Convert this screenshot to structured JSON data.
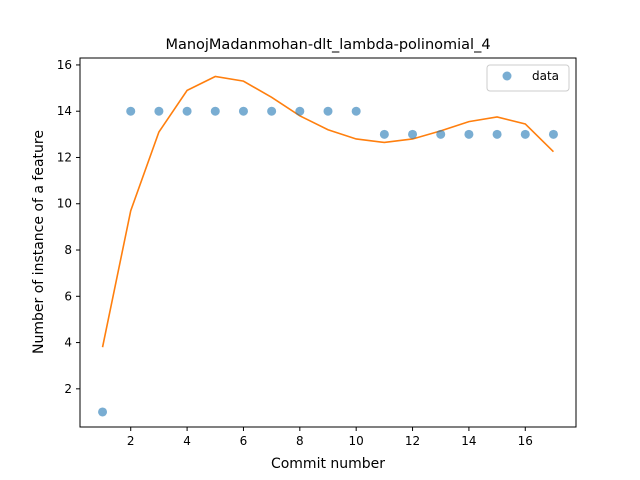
{
  "chart_data": {
    "type": "scatter",
    "title": "ManojMadanmohan-dlt_lambda-polinomial_4",
    "xlabel": "Commit number",
    "ylabel": "Number of instance of a feature",
    "xlim": [
      0.2,
      17.8
    ],
    "ylim": [
      0.35,
      16.3
    ],
    "xticks": [
      2,
      4,
      6,
      8,
      10,
      12,
      14,
      16
    ],
    "yticks": [
      2,
      4,
      6,
      8,
      10,
      12,
      14,
      16
    ],
    "grid": false,
    "legend_position": "top-right",
    "series": [
      {
        "name": "data",
        "kind": "scatter",
        "color": "#1f77b4",
        "x": [
          1,
          2,
          3,
          4,
          5,
          6,
          7,
          8,
          9,
          10,
          11,
          12,
          13,
          14,
          15,
          16,
          17
        ],
        "y": [
          1,
          14,
          14,
          14,
          14,
          14,
          14,
          14,
          14,
          14,
          13,
          13,
          13,
          13,
          13,
          13,
          13
        ]
      },
      {
        "kind": "line",
        "color": "#ff7f0e",
        "x": [
          1,
          2,
          3,
          4,
          5,
          6,
          7,
          8,
          9,
          10,
          11,
          12,
          13,
          14,
          15,
          16,
          17
        ],
        "y": [
          3.8,
          9.7,
          13.1,
          14.9,
          15.5,
          15.3,
          14.6,
          13.8,
          13.2,
          12.8,
          12.65,
          12.8,
          13.15,
          13.55,
          13.75,
          13.45,
          12.25
        ]
      }
    ]
  }
}
